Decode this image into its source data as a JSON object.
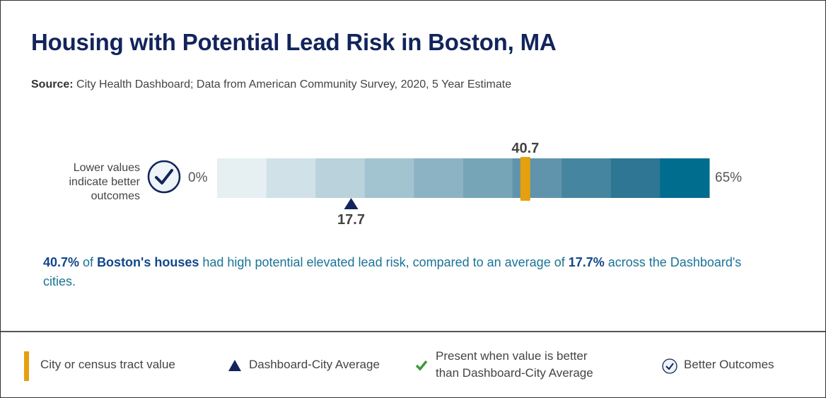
{
  "title": "Housing with Potential Lead Risk in Boston, MA",
  "source": {
    "label": "Source:",
    "text": "City Health Dashboard; Data from American Community Survey, 2020, 5 Year Estimate"
  },
  "chart_data": {
    "type": "bar",
    "subtype": "segmented-gauge",
    "xlim": [
      0,
      65
    ],
    "min_label": "0%",
    "max_label": "65%",
    "segments": 10,
    "segment_colors": [
      "#e6eff2",
      "#d0e2e8",
      "#b9d2db",
      "#a2c4d0",
      "#8cb3c4",
      "#77a5b8",
      "#5f94ac",
      "#4685a0",
      "#2e7694",
      "#006d8f"
    ],
    "city_value": 40.7,
    "city_value_label": "40.7",
    "average_value": 17.7,
    "average_label": "17.7",
    "direction_note": "Lower values indicate better outcomes",
    "colors": {
      "city_marker": "#e5a00d",
      "average_marker": "#12245b"
    }
  },
  "summary": {
    "value": "40.7%",
    "t1": " of ",
    "place": "Boston's houses",
    "t2": " had high potential elevated lead risk, compared to an average of ",
    "avg": "17.7%",
    "t3": " across the Dashboard's cities."
  },
  "legend": {
    "city": "City or census tract value",
    "average": "Dashboard-City Average",
    "better_line1": "Present when value is better",
    "better_line2": "than Dashboard-City Average",
    "outcomes": "Better Outcomes"
  }
}
